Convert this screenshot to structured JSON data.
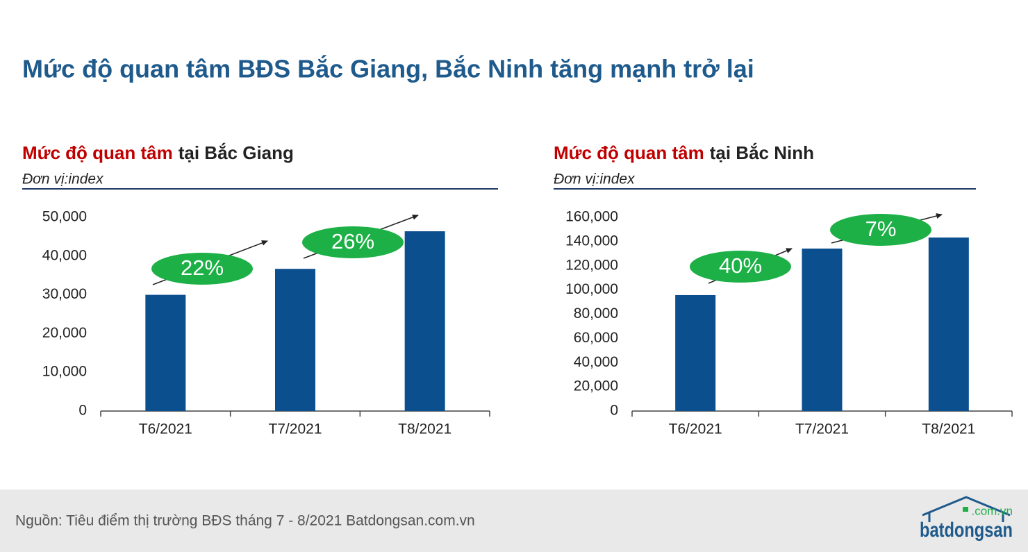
{
  "title": "Mức độ quan tâm BĐS Bắc Giang, Bắc Ninh tăng mạnh trở lại",
  "source": "Nguồn: Tiêu điểm thị trường BĐS tháng 7 - 8/2021 Batdongsan.com.vn",
  "logo": {
    "name": "batdongsan",
    "domain": ".com.vn"
  },
  "chart_data": [
    {
      "type": "bar",
      "title_parts": [
        "Mức độ quan tâm",
        "tại Bắc Giang"
      ],
      "title_colors": [
        "#c00000",
        "#222222"
      ],
      "subtitle": "Đơn vị:index",
      "categories": [
        "T6/2021",
        "T7/2021",
        "T8/2021"
      ],
      "values": [
        30000,
        36700,
        46400
      ],
      "color": "#0b4f8f",
      "ylim": [
        0,
        50000
      ],
      "yticks": [
        0,
        {
          "value": 10000,
          "label": "10,000"
        },
        {
          "value": 20000,
          "label": "20,000"
        },
        {
          "value": 30000,
          "label": "30,000"
        },
        {
          "value": 40000,
          "label": "40,000"
        },
        {
          "value": 50000,
          "label": "50,000"
        }
      ],
      "annotations": [
        "22%",
        "26%"
      ],
      "annotation_color": "#1db046"
    },
    {
      "type": "bar",
      "title_parts": [
        "Mức độ quan tâm",
        "tại Bắc Ninh"
      ],
      "title_colors": [
        "#c00000",
        "#222222"
      ],
      "subtitle": "Đơn vị:index",
      "categories": [
        "T6/2021",
        "T7/2021",
        "T8/2021"
      ],
      "values": [
        95800,
        134200,
        143300
      ],
      "color": "#0b4f8f",
      "ylim": [
        0,
        160000
      ],
      "yticks": [
        0,
        {
          "value": 20000,
          "label": "20,000"
        },
        {
          "value": 40000,
          "label": "40,000"
        },
        {
          "value": 60000,
          "label": "60,000"
        },
        {
          "value": 80000,
          "label": "80,000"
        },
        {
          "value": 100000,
          "label": "100,000"
        },
        {
          "value": 120000,
          "label": "120,000"
        },
        {
          "value": 140000,
          "label": "140,000"
        },
        {
          "value": 160000,
          "label": "160,000"
        }
      ],
      "annotations": [
        "40%",
        "7%"
      ],
      "annotation_color": "#1db046"
    }
  ]
}
